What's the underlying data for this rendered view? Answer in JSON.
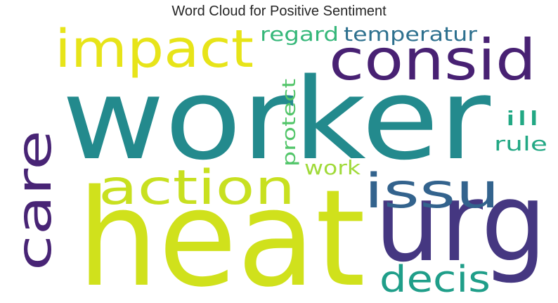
{
  "title": "Word Cloud for Positive Sentiment",
  "words": [
    {
      "text": "worker",
      "color": "#238a8d",
      "orientation": "horizontal"
    },
    {
      "text": "heat",
      "color": "#d0e11c",
      "orientation": "horizontal"
    },
    {
      "text": "urg",
      "color": "#453781",
      "orientation": "horizontal"
    },
    {
      "text": "impact",
      "color": "#e7e419",
      "orientation": "horizontal"
    },
    {
      "text": "consid",
      "color": "#482173",
      "orientation": "horizontal"
    },
    {
      "text": "care",
      "color": "#482475",
      "orientation": "vertical"
    },
    {
      "text": "action",
      "color": "#c8e020",
      "orientation": "horizontal"
    },
    {
      "text": "issu",
      "color": "#33638d",
      "orientation": "horizontal"
    },
    {
      "text": "decis",
      "color": "#1f9e89",
      "orientation": "horizontal"
    },
    {
      "text": "temperatur",
      "color": "#2d708e",
      "orientation": "horizontal"
    },
    {
      "text": "regard",
      "color": "#35b779",
      "orientation": "horizontal"
    },
    {
      "text": "protect",
      "color": "#52c569",
      "orientation": "vertical"
    },
    {
      "text": "ill",
      "color": "#22a884",
      "orientation": "horizontal"
    },
    {
      "text": "rule",
      "color": "#22a884",
      "orientation": "horizontal"
    },
    {
      "text": "work",
      "color": "#a0da39",
      "orientation": "horizontal"
    }
  ]
}
